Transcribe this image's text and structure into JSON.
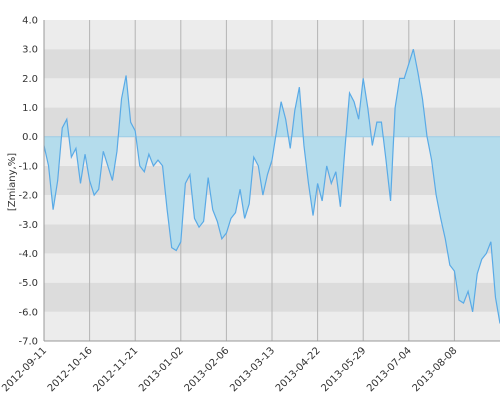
{
  "chart_data": {
    "type": "area",
    "y_label": "[Zmiany,%]",
    "categories": [
      "2012-09-11",
      null,
      null,
      null,
      null,
      null,
      null,
      null,
      null,
      null,
      "2012-10-16",
      null,
      null,
      null,
      null,
      null,
      null,
      null,
      null,
      null,
      "2012-11-21",
      null,
      null,
      null,
      null,
      null,
      null,
      null,
      null,
      null,
      "2013-01-02",
      null,
      null,
      null,
      null,
      null,
      null,
      null,
      null,
      null,
      "2013-02-06",
      null,
      null,
      null,
      null,
      null,
      null,
      null,
      null,
      null,
      "2013-03-13",
      null,
      null,
      null,
      null,
      null,
      null,
      null,
      null,
      null,
      "2013-04-22",
      null,
      null,
      null,
      null,
      null,
      null,
      null,
      null,
      null,
      "2013-05-29",
      null,
      null,
      null,
      null,
      null,
      null,
      null,
      null,
      null,
      "2013-07-04",
      null,
      null,
      null,
      null,
      null,
      null,
      null,
      null,
      null,
      "2013-08-08",
      null,
      null,
      null,
      null,
      null,
      null,
      null,
      null,
      null,
      null
    ],
    "values": [
      -0.3,
      -1.0,
      -2.5,
      -1.5,
      0.3,
      0.6,
      -0.7,
      -0.4,
      -1.6,
      -0.6,
      -1.5,
      -2.0,
      -1.8,
      -0.5,
      -1.0,
      -1.5,
      -0.5,
      1.3,
      2.1,
      0.5,
      0.2,
      -1.0,
      -1.2,
      -0.6,
      -1.0,
      -0.8,
      -1.0,
      -2.5,
      -3.8,
      -3.9,
      -3.6,
      -1.6,
      -1.3,
      -2.8,
      -3.1,
      -2.9,
      -1.4,
      -2.5,
      -2.9,
      -3.5,
      -3.3,
      -2.8,
      -2.6,
      -1.8,
      -2.8,
      -2.3,
      -0.7,
      -1.0,
      -2.0,
      -1.3,
      -0.8,
      0.2,
      1.2,
      0.6,
      -0.4,
      0.9,
      1.7,
      -0.3,
      -1.6,
      -2.7,
      -1.6,
      -2.2,
      -1.0,
      -1.6,
      -1.2,
      -2.4,
      -0.4,
      1.5,
      1.2,
      0.6,
      2.0,
      1.0,
      -0.3,
      0.5,
      0.5,
      -0.8,
      -2.2,
      1.0,
      2.0,
      2.0,
      2.5,
      3.0,
      2.2,
      1.3,
      0.0,
      -0.8,
      -2.0,
      -2.8,
      -3.5,
      -4.4,
      -4.6,
      -5.6,
      -5.7,
      -5.3,
      -6.0,
      -4.7,
      -4.2,
      -4.0,
      -3.6,
      -5.5,
      -6.4
    ],
    "color": "#5aaae6",
    "fill": "#b4dcec",
    "ylim": [
      -7,
      4
    ],
    "yticks": [
      {
        "value": -7,
        "label": "-7.0"
      },
      {
        "value": -6,
        "label": "-6.0"
      },
      {
        "value": -5,
        "label": "-5.0"
      },
      {
        "value": -4,
        "label": "-4.0"
      },
      {
        "value": -3,
        "label": "-3.0"
      },
      {
        "value": -2,
        "label": "-2.0"
      },
      {
        "value": -1,
        "label": "-1.0"
      },
      {
        "value": 0,
        "label": "0.0"
      },
      {
        "value": 1,
        "label": "1.0"
      },
      {
        "value": 2,
        "label": "2.0"
      },
      {
        "value": 3,
        "label": "3.0"
      },
      {
        "value": 4,
        "label": "4.0"
      }
    ],
    "band_colors": [
      "#ececec",
      "#dcdcdc"
    ],
    "grid": true
  }
}
